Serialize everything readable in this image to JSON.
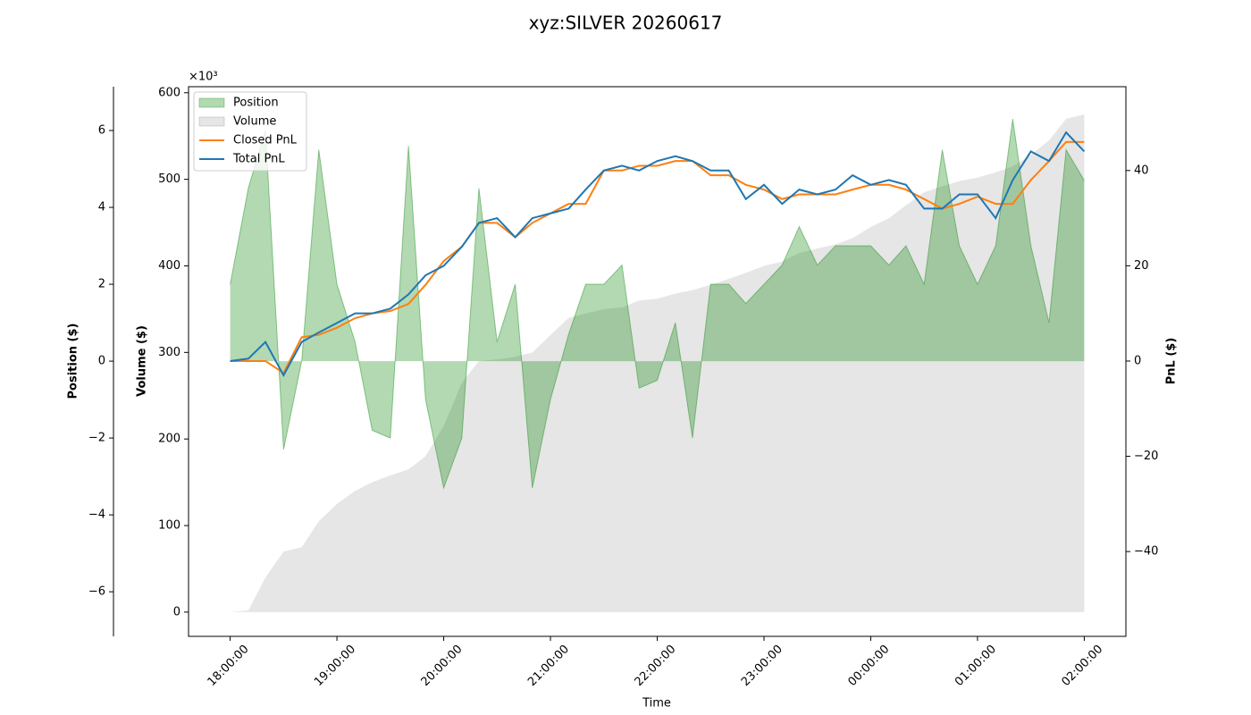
{
  "chart_data": {
    "type": "line",
    "title": "xyz:SILVER 20260617",
    "x_label": "Time",
    "y_label": "Position ($)",
    "y_offset_label": "×10³",
    "y_color": "green",
    "y3_label": "Volume ($)",
    "y3_color": "gray",
    "y2_label": "PnL ($)",
    "y2_color": "#000000",
    "grid": false,
    "legend": "upper left",
    "xlim": [
      -0.39,
      8.39
    ],
    "xticks": [
      {
        "value": 0,
        "label": "18:00:00"
      },
      {
        "value": 1,
        "label": "19:00:00"
      },
      {
        "value": 2,
        "label": "20:00:00"
      },
      {
        "value": 3,
        "label": "21:00:00"
      },
      {
        "value": 4,
        "label": "22:00:00"
      },
      {
        "value": 5,
        "label": "23:00:00"
      },
      {
        "value": 6,
        "label": "00:00:00"
      },
      {
        "value": 7,
        "label": "01:00:00"
      },
      {
        "value": 8,
        "label": "02:00:00"
      }
    ],
    "ylim": [
      -7.16,
      7.14
    ],
    "yticks": [
      {
        "value": -6,
        "label": "−6"
      },
      {
        "value": -4,
        "label": "−4"
      },
      {
        "value": -2,
        "label": "−2"
      },
      0,
      2,
      4,
      6
    ],
    "y3lim": [
      -28,
      607
    ],
    "y3ticks": [
      0,
      100,
      200,
      300,
      400,
      500,
      600
    ],
    "y2lim": [
      -57.8,
      57.6
    ],
    "y2ticks": [
      {
        "value": -40,
        "label": "−40"
      },
      {
        "value": -20,
        "label": "−20"
      },
      0,
      20,
      40
    ],
    "x": [
      0,
      0.17,
      0.33,
      0.5,
      0.67,
      0.83,
      1,
      1.17,
      1.33,
      1.5,
      1.67,
      1.83,
      2,
      2.17,
      2.33,
      2.5,
      2.67,
      2.83,
      3,
      3.17,
      3.33,
      3.5,
      3.67,
      3.83,
      4,
      4.17,
      4.33,
      4.5,
      4.67,
      4.83,
      5,
      5.17,
      5.33,
      5.5,
      5.67,
      5.83,
      6,
      6.17,
      6.33,
      6.5,
      6.67,
      6.83,
      7,
      7.17,
      7.33,
      7.5,
      7.67,
      7.83,
      8
    ],
    "series": [
      {
        "name": "Position",
        "type": "area",
        "axis": "y",
        "color": "green",
        "values": [
          2,
          4.5,
          6,
          -2.3,
          0,
          5.5,
          2,
          0.5,
          -1.8,
          -2,
          5.6,
          -1,
          -3.3,
          -2,
          4.5,
          0.5,
          2,
          -3.3,
          -1,
          0.7,
          2,
          2,
          2.5,
          -0.7,
          -0.5,
          1,
          -2,
          2,
          2,
          1.5,
          2,
          2.5,
          3.5,
          2.5,
          3,
          3,
          3,
          2.5,
          3,
          2,
          5.5,
          3,
          2,
          3,
          6.3,
          3,
          1,
          5.5,
          4.7
        ]
      },
      {
        "name": "Volume",
        "type": "area",
        "axis": "y3",
        "color": "gray",
        "values": [
          0,
          2,
          40,
          70,
          75,
          105,
          125,
          140,
          150,
          158,
          165,
          180,
          215,
          265,
          290,
          292,
          295,
          300,
          320,
          340,
          345,
          350,
          352,
          360,
          362,
          368,
          372,
          378,
          385,
          392,
          400,
          405,
          415,
          420,
          425,
          432,
          445,
          455,
          470,
          485,
          492,
          498,
          502,
          508,
          515,
          528,
          545,
          570,
          575
        ]
      },
      {
        "name": "Closed PnL",
        "type": "line",
        "axis": "y2",
        "color": "#ff7f0e",
        "values": [
          0,
          0,
          0,
          -2.5,
          5,
          5.5,
          7,
          9,
          10,
          10.5,
          12,
          16,
          21,
          24,
          29,
          29,
          26,
          29,
          31,
          33,
          33,
          40,
          40,
          41,
          41,
          42,
          42,
          39,
          39,
          37,
          36,
          34,
          35,
          35,
          35,
          36,
          37,
          37,
          36,
          34,
          32,
          33,
          34.5,
          33,
          33,
          38,
          42,
          46,
          46
        ]
      },
      {
        "name": "Total PnL",
        "type": "line",
        "axis": "y2",
        "color": "#1f77b4",
        "values": [
          0,
          0.5,
          4,
          -3,
          4,
          6,
          8,
          10,
          10,
          11,
          14,
          18,
          20,
          24,
          29,
          30,
          26,
          30,
          31,
          32,
          36,
          40,
          41,
          40,
          42,
          43,
          42,
          40,
          40,
          34,
          37,
          33,
          36,
          35,
          36,
          39,
          37,
          38,
          37,
          32,
          32,
          35,
          35,
          30,
          38,
          44,
          42,
          48,
          44
        ]
      }
    ]
  }
}
